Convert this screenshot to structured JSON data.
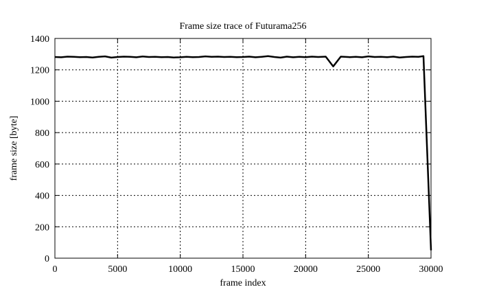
{
  "chart_data": {
    "type": "line",
    "title": "Frame size trace of Futurama256",
    "xlabel": "frame index",
    "ylabel": "frame size [byte]",
    "xlim": [
      0,
      30000
    ],
    "ylim": [
      0,
      1400
    ],
    "xticks": [
      0,
      5000,
      10000,
      15000,
      20000,
      25000,
      30000
    ],
    "yticks": [
      0,
      200,
      400,
      600,
      800,
      1000,
      1200,
      1400
    ],
    "grid": true,
    "line_color": "#000000",
    "series": [
      {
        "x": [
          0,
          500,
          1000,
          1500,
          2000,
          2500,
          3000,
          3500,
          4000,
          4500,
          5000,
          5500,
          6000,
          6500,
          7000,
          7500,
          8000,
          8500,
          9000,
          9500,
          10000,
          10500,
          11000,
          11500,
          12000,
          12500,
          13000,
          13500,
          14000,
          14500,
          15000,
          15500,
          16000,
          16500,
          17000,
          17500,
          18000,
          18500,
          19000,
          19500,
          20000,
          20500,
          21000,
          21600,
          22200,
          22800,
          23500,
          24000,
          24500,
          25000,
          25500,
          26000,
          26500,
          27000,
          27500,
          28000,
          28500,
          29000,
          29400,
          30000
        ],
        "y": [
          1282,
          1280,
          1284,
          1283,
          1281,
          1282,
          1279,
          1283,
          1286,
          1278,
          1282,
          1284,
          1283,
          1280,
          1285,
          1282,
          1283,
          1281,
          1282,
          1279,
          1280,
          1283,
          1281,
          1282,
          1286,
          1283,
          1284,
          1282,
          1283,
          1281,
          1282,
          1284,
          1280,
          1283,
          1287,
          1282,
          1278,
          1284,
          1280,
          1283,
          1281,
          1284,
          1282,
          1284,
          1222,
          1284,
          1281,
          1283,
          1280,
          1286,
          1282,
          1283,
          1281,
          1284,
          1279,
          1282,
          1284,
          1283,
          1287,
          50
        ]
      }
    ]
  }
}
